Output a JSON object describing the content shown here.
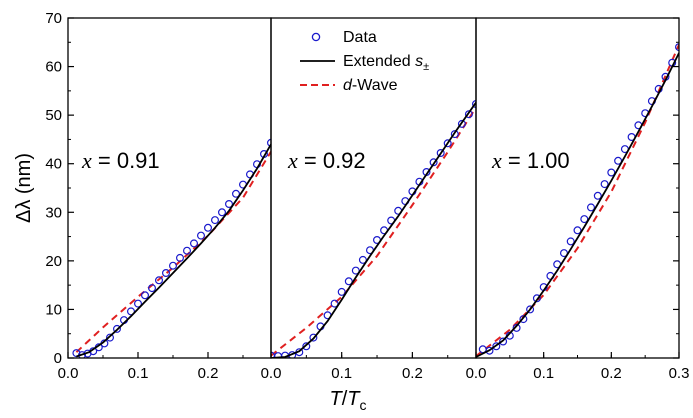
{
  "chart_data": {
    "type": "scatter",
    "ylabel": "Δλ (nm)",
    "xlabel": {
      "main": "T",
      "sub": "c",
      "sep": "/"
    },
    "ylim": [
      0,
      70
    ],
    "yticks": [
      0,
      10,
      20,
      30,
      40,
      50,
      60,
      70
    ],
    "legend": {
      "placement": "top-center",
      "entries": [
        {
          "label": "Data",
          "style": "open-circle",
          "color": "#1a1acc"
        },
        {
          "label": "Extended s",
          "sub": "±",
          "style": "solid-line",
          "color": "#000000"
        },
        {
          "label": "-Wave",
          "prefix": "d",
          "style": "dashed-line",
          "color": "#e02020"
        }
      ]
    },
    "colors": {
      "data": "#1a1acc",
      "extended": "#000000",
      "dwave": "#e02020",
      "axis": "#000000"
    },
    "panels": [
      {
        "label": {
          "var": "x",
          "value": "= 0.91"
        },
        "xlim": [
          0,
          0.29
        ],
        "xticks": [
          0.0,
          0.1,
          0.2
        ],
        "xtick_labels": [
          "0.0",
          "0.1",
          "0.2"
        ],
        "data_x": [
          0.012,
          0.02,
          0.028,
          0.036,
          0.044,
          0.052,
          0.06,
          0.07,
          0.08,
          0.09,
          0.1,
          0.11,
          0.12,
          0.13,
          0.14,
          0.15,
          0.16,
          0.17,
          0.18,
          0.19,
          0.2,
          0.21,
          0.22,
          0.23,
          0.24,
          0.25,
          0.26,
          0.27,
          0.28,
          0.29
        ],
        "data_y": [
          1.0,
          0.6,
          0.9,
          1.4,
          2.2,
          3.0,
          4.2,
          6.0,
          7.8,
          9.6,
          11.2,
          12.9,
          14.4,
          16.0,
          17.5,
          19.0,
          20.6,
          22.1,
          23.6,
          25.2,
          26.8,
          28.4,
          30.0,
          31.7,
          33.8,
          35.7,
          37.8,
          39.9,
          42.0,
          44.3
        ],
        "extended_x": [
          0.012,
          0.03,
          0.05,
          0.07,
          0.09,
          0.11,
          0.13,
          0.15,
          0.17,
          0.19,
          0.21,
          0.23,
          0.25,
          0.27,
          0.29
        ],
        "extended_y": [
          0.3,
          1.2,
          3.2,
          5.8,
          8.6,
          11.6,
          14.5,
          17.5,
          20.5,
          23.6,
          26.8,
          30.3,
          34.5,
          39.0,
          44.0
        ],
        "dwave_x": [
          0.012,
          0.05,
          0.1,
          0.15,
          0.2,
          0.25,
          0.29
        ],
        "dwave_y": [
          1.2,
          6.3,
          12.6,
          18.6,
          25.2,
          33.0,
          42.5
        ]
      },
      {
        "label": {
          "var": "x",
          "value": "= 0.92"
        },
        "xlim": [
          0,
          0.29
        ],
        "xticks": [
          0.0,
          0.1,
          0.2
        ],
        "xtick_labels": [
          "0.0",
          "0.1",
          "0.2"
        ],
        "data_x": [
          0.0,
          0.01,
          0.02,
          0.03,
          0.04,
          0.05,
          0.06,
          0.07,
          0.08,
          0.09,
          0.1,
          0.11,
          0.12,
          0.13,
          0.14,
          0.15,
          0.16,
          0.17,
          0.18,
          0.19,
          0.2,
          0.21,
          0.22,
          0.23,
          0.24,
          0.25,
          0.26,
          0.27,
          0.28,
          0.29
        ],
        "data_y": [
          0.5,
          0.4,
          0.5,
          0.6,
          1.2,
          2.4,
          4.2,
          6.5,
          8.8,
          11.2,
          13.6,
          15.8,
          18.0,
          20.2,
          22.2,
          24.3,
          26.3,
          28.3,
          30.3,
          32.3,
          34.3,
          36.3,
          38.3,
          40.3,
          42.2,
          44.2,
          46.1,
          48.2,
          50.2,
          52.3
        ],
        "extended_x": [
          0.0,
          0.02,
          0.04,
          0.06,
          0.08,
          0.1,
          0.12,
          0.14,
          0.16,
          0.18,
          0.2,
          0.22,
          0.24,
          0.26,
          0.29
        ],
        "extended_y": [
          0.0,
          0.2,
          1.4,
          4.0,
          7.6,
          12.0,
          16.6,
          21.0,
          25.2,
          29.2,
          33.5,
          37.8,
          42.1,
          46.4,
          52.6
        ],
        "dwave_x": [
          0.0,
          0.05,
          0.1,
          0.15,
          0.2,
          0.25,
          0.29
        ],
        "dwave_y": [
          0.5,
          6.2,
          12.6,
          21.0,
          31.5,
          42.4,
          51.6
        ]
      },
      {
        "label": {
          "var": "x",
          "value": "= 1.00"
        },
        "xlim": [
          0,
          0.3
        ],
        "xticks": [
          0.0,
          0.1,
          0.2,
          0.3
        ],
        "xtick_labels": [
          "0.0",
          "0.1",
          "0.2",
          "0.3"
        ],
        "data_x": [
          0.01,
          0.02,
          0.03,
          0.04,
          0.05,
          0.06,
          0.07,
          0.08,
          0.09,
          0.1,
          0.11,
          0.12,
          0.13,
          0.14,
          0.15,
          0.16,
          0.17,
          0.18,
          0.19,
          0.2,
          0.21,
          0.22,
          0.23,
          0.24,
          0.25,
          0.26,
          0.27,
          0.28,
          0.29,
          0.3
        ],
        "data_y": [
          1.8,
          1.5,
          2.4,
          3.4,
          4.6,
          6.2,
          8.0,
          10.0,
          12.3,
          14.6,
          16.9,
          19.3,
          21.6,
          24.0,
          26.3,
          28.6,
          31.0,
          33.4,
          35.8,
          38.2,
          40.6,
          43.0,
          45.5,
          47.9,
          50.4,
          52.9,
          55.4,
          57.9,
          60.8,
          64.0
        ],
        "extended_x": [
          0.0,
          0.02,
          0.04,
          0.06,
          0.08,
          0.1,
          0.12,
          0.14,
          0.16,
          0.18,
          0.2,
          0.22,
          0.24,
          0.26,
          0.28,
          0.3
        ],
        "extended_y": [
          0.2,
          1.6,
          3.6,
          6.6,
          10.0,
          13.9,
          18.0,
          22.4,
          27.0,
          31.7,
          36.5,
          41.5,
          46.6,
          51.8,
          57.2,
          62.8
        ],
        "dwave_x": [
          0.0,
          0.05,
          0.1,
          0.15,
          0.2,
          0.25,
          0.3
        ],
        "dwave_y": [
          0.4,
          5.8,
          13.0,
          22.6,
          34.2,
          48.5,
          64.5
        ]
      }
    ]
  }
}
